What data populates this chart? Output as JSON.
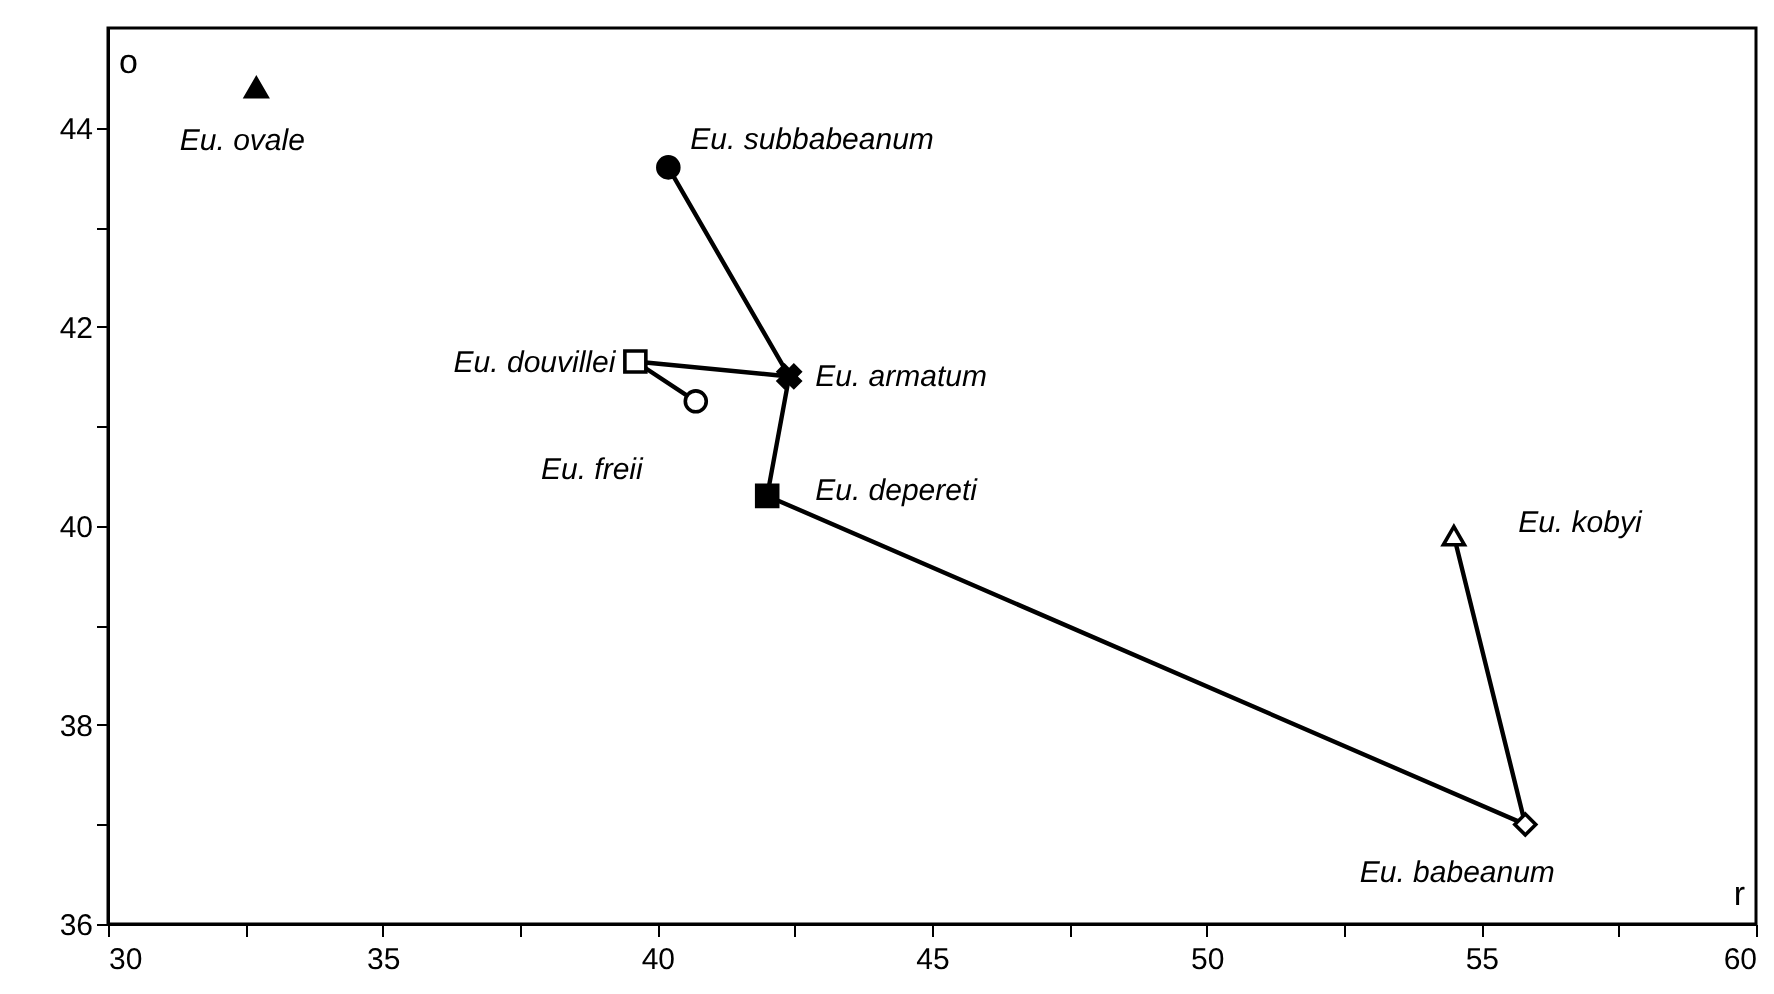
{
  "chart_data": {
    "type": "scatter",
    "xlabel": "r",
    "ylabel": "o",
    "xlim": [
      30,
      60
    ],
    "ylim": [
      36,
      45
    ],
    "xticks": [
      30,
      {
        "value": 32.5,
        "label": null
      },
      35,
      {
        "value": 37.5,
        "label": null
      },
      40,
      {
        "value": 42.5,
        "label": null
      },
      45,
      {
        "value": 47.5,
        "label": null
      },
      50,
      {
        "value": 52.5,
        "label": null
      },
      55,
      {
        "value": 57.5,
        "label": null
      },
      60
    ],
    "yticks": [
      36,
      {
        "value": 37,
        "label": null
      },
      38,
      {
        "value": 39,
        "label": null
      },
      40,
      {
        "value": 41,
        "label": null
      },
      42,
      {
        "value": 43,
        "label": null
      },
      44
    ],
    "grid": false,
    "series": [
      {
        "type": "line",
        "color": "#000000",
        "marker": "none",
        "x": [
          40.2,
          42.4,
          42.0,
          55.8,
          54.5
        ],
        "values": [
          43.6,
          41.5,
          40.3,
          37.0,
          39.9
        ]
      },
      {
        "type": "line",
        "color": "#000000",
        "marker": "none",
        "x": [
          40.7,
          39.6,
          42.4
        ],
        "values": [
          41.25,
          41.65,
          41.5
        ]
      },
      {
        "name": "Eu. ovale",
        "color": "#000000",
        "marker": "triangle",
        "x": [
          32.7
        ],
        "values": [
          44.4
        ]
      },
      {
        "name": "Eu. subbabeanum",
        "color": "#000000",
        "marker": "circle",
        "x": [
          40.2
        ],
        "values": [
          43.6
        ]
      },
      {
        "name": "Eu. armatum",
        "color": "#000000",
        "marker": "cross",
        "x": [
          42.4
        ],
        "values": [
          41.5
        ]
      },
      {
        "name": "Eu. douvillei",
        "color": "#ffffff",
        "marker": "square",
        "x": [
          39.6
        ],
        "values": [
          41.65
        ]
      },
      {
        "name": "Eu. freii",
        "color": "#ffffff",
        "marker": "circle",
        "x": [
          40.7
        ],
        "values": [
          41.25
        ]
      },
      {
        "name": "Eu. depereti",
        "color": "#000000",
        "marker": "square",
        "x": [
          42.0
        ],
        "values": [
          40.3
        ]
      },
      {
        "name": "Eu. babeanum",
        "color": "#ffffff",
        "marker": "diamond",
        "x": [
          55.8
        ],
        "values": [
          37.0
        ]
      },
      {
        "name": "Eu. kobyi",
        "color": "#ffffff",
        "marker": "triangle",
        "x": [
          54.5
        ],
        "values": [
          39.9
        ]
      }
    ]
  }
}
